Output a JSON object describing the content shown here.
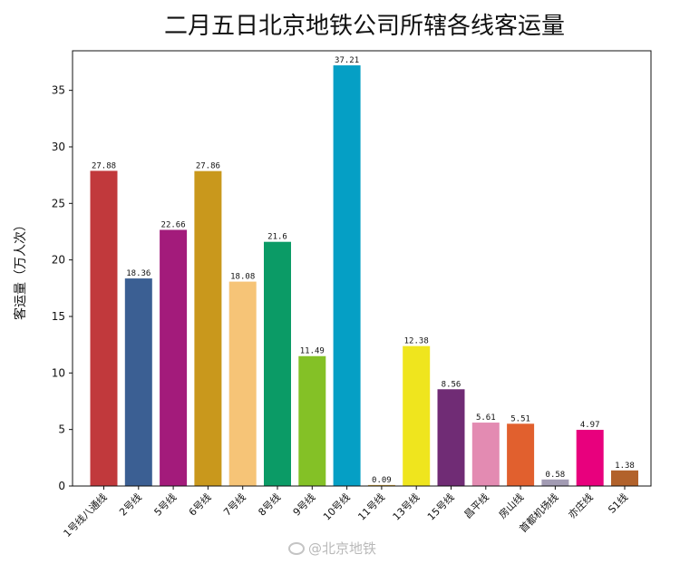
{
  "chart_data": {
    "type": "bar",
    "title": "二月五日北京地铁公司所辖各线客运量",
    "xlabel": "",
    "ylabel": "客运量（万人次）",
    "ylim": [
      0,
      38.5
    ],
    "yticks": [
      0,
      5,
      10,
      15,
      20,
      25,
      30,
      35
    ],
    "grid": false,
    "categories": [
      "1号线八通线",
      "2号线",
      "5号线",
      "6号线",
      "7号线",
      "8号线",
      "9号线",
      "10号线",
      "11号线",
      "13号线",
      "15号线",
      "昌平线",
      "房山线",
      "首都机场线",
      "亦庄线",
      "S1线"
    ],
    "values": [
      27.88,
      18.36,
      22.66,
      27.86,
      18.08,
      21.6,
      11.49,
      37.21,
      0.09,
      12.38,
      8.56,
      5.61,
      5.51,
      0.58,
      4.97,
      1.38
    ],
    "value_labels": [
      "27.88",
      "18.36",
      "22.66",
      "27.86",
      "18.08",
      "21.6",
      "11.49",
      "37.21",
      "0.09",
      "12.38",
      "8.56",
      "5.61",
      "5.51",
      "0.58",
      "4.97",
      "1.38"
    ],
    "colors": [
      "#c1393c",
      "#3b5f93",
      "#a31b7b",
      "#c9981c",
      "#f6c477",
      "#0b9b66",
      "#84c126",
      "#059fc5",
      "#d09e33",
      "#efe51e",
      "#702c75",
      "#e38bb2",
      "#e1602e",
      "#a29bb3",
      "#e8007d",
      "#b2622b"
    ]
  },
  "watermark": "@北京地铁"
}
